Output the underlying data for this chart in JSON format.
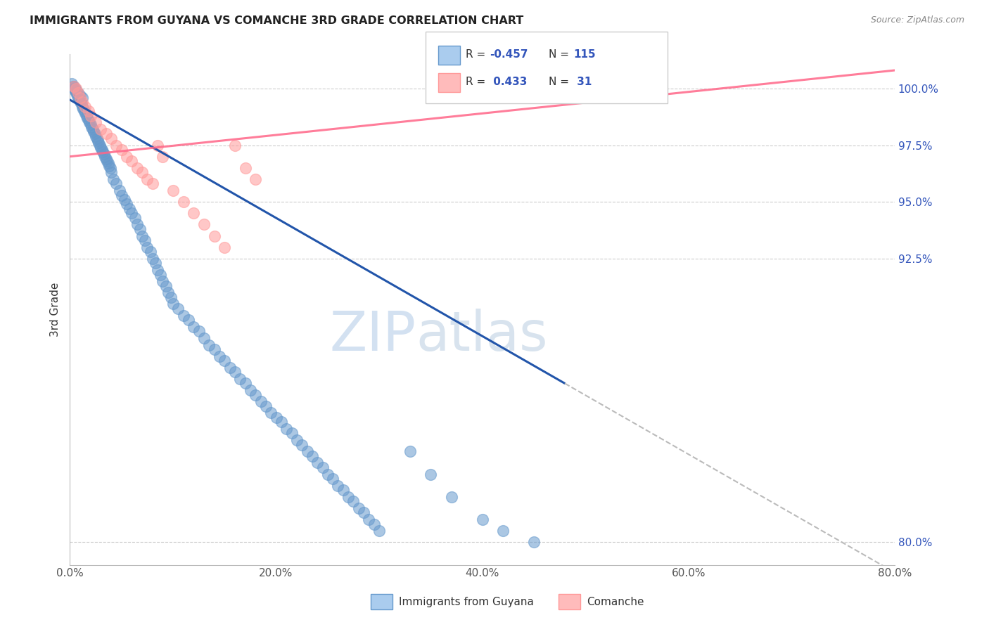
{
  "title": "IMMIGRANTS FROM GUYANA VS COMANCHE 3RD GRADE CORRELATION CHART",
  "source_text": "Source: ZipAtlas.com",
  "ylabel": "3rd Grade",
  "xmin": 0.0,
  "xmax": 80.0,
  "ymin": 79.0,
  "ymax": 101.5,
  "yticks": [
    80.0,
    92.5,
    95.0,
    97.5,
    100.0
  ],
  "ytick_labels": [
    "80.0%",
    "92.5%",
    "95.0%",
    "97.5%",
    "100.0%"
  ],
  "xticks": [
    0.0,
    20.0,
    40.0,
    60.0,
    80.0
  ],
  "xtick_labels": [
    "0.0%",
    "20.0%",
    "40.0%",
    "60.0%",
    "80.0%"
  ],
  "legend_r1": "-0.457",
  "legend_n1": "115",
  "legend_r2": "0.433",
  "legend_n2": "31",
  "blue_color": "#6699CC",
  "pink_color": "#FF9999",
  "blue_line_color": "#2255AA",
  "pink_line_color": "#FF6688",
  "watermark_zip": "ZIP",
  "watermark_atlas": "atlas",
  "blue_scatter_x": [
    0.3,
    0.4,
    0.5,
    0.6,
    0.7,
    0.8,
    0.9,
    1.0,
    1.1,
    1.2,
    1.3,
    1.4,
    1.5,
    1.6,
    1.7,
    1.8,
    1.9,
    2.0,
    2.1,
    2.2,
    2.3,
    2.4,
    2.5,
    2.6,
    2.7,
    2.8,
    2.9,
    3.0,
    3.1,
    3.2,
    3.3,
    3.4,
    3.5,
    3.6,
    3.7,
    3.8,
    3.9,
    4.0,
    4.2,
    4.5,
    4.8,
    5.0,
    5.3,
    5.5,
    5.8,
    6.0,
    6.3,
    6.5,
    6.8,
    7.0,
    7.3,
    7.5,
    7.8,
    8.0,
    8.3,
    8.5,
    8.8,
    9.0,
    9.3,
    9.5,
    9.8,
    10.0,
    10.5,
    11.0,
    11.5,
    12.0,
    12.5,
    13.0,
    13.5,
    14.0,
    14.5,
    15.0,
    15.5,
    16.0,
    16.5,
    17.0,
    17.5,
    18.0,
    18.5,
    19.0,
    19.5,
    20.0,
    20.5,
    21.0,
    21.5,
    22.0,
    22.5,
    23.0,
    23.5,
    24.0,
    24.5,
    25.0,
    25.5,
    26.0,
    26.5,
    27.0,
    27.5,
    28.0,
    28.5,
    29.0,
    29.5,
    30.0,
    33.0,
    35.0,
    37.0,
    40.0,
    42.0,
    45.0,
    0.2,
    0.4,
    0.5,
    0.6,
    0.8,
    1.0,
    1.2
  ],
  "blue_scatter_y": [
    100.1,
    100.0,
    99.9,
    99.8,
    99.7,
    99.6,
    99.5,
    99.4,
    99.3,
    99.2,
    99.1,
    99.0,
    98.9,
    98.8,
    98.7,
    98.6,
    98.5,
    98.4,
    98.3,
    98.2,
    98.1,
    98.0,
    97.9,
    97.8,
    97.7,
    97.6,
    97.5,
    97.4,
    97.3,
    97.2,
    97.1,
    97.0,
    96.9,
    96.8,
    96.7,
    96.6,
    96.5,
    96.3,
    96.0,
    95.8,
    95.5,
    95.3,
    95.1,
    94.9,
    94.7,
    94.5,
    94.3,
    94.0,
    93.8,
    93.5,
    93.3,
    93.0,
    92.8,
    92.5,
    92.3,
    92.0,
    91.8,
    91.5,
    91.3,
    91.0,
    90.8,
    90.5,
    90.3,
    90.0,
    89.8,
    89.5,
    89.3,
    89.0,
    88.7,
    88.5,
    88.2,
    88.0,
    87.7,
    87.5,
    87.2,
    87.0,
    86.7,
    86.5,
    86.2,
    86.0,
    85.7,
    85.5,
    85.3,
    85.0,
    84.8,
    84.5,
    84.3,
    84.0,
    83.8,
    83.5,
    83.3,
    83.0,
    82.8,
    82.5,
    82.3,
    82.0,
    81.8,
    81.5,
    81.3,
    81.0,
    80.8,
    80.5,
    84.0,
    83.0,
    82.0,
    81.0,
    80.5,
    80.0,
    100.2,
    100.1,
    100.0,
    99.9,
    99.8,
    99.7,
    99.6
  ],
  "pink_scatter_x": [
    0.4,
    0.6,
    0.8,
    1.0,
    1.2,
    1.5,
    1.8,
    2.0,
    2.5,
    3.0,
    3.5,
    4.0,
    4.5,
    5.0,
    5.5,
    6.0,
    6.5,
    7.0,
    7.5,
    8.0,
    8.5,
    9.0,
    10.0,
    11.0,
    12.0,
    13.0,
    14.0,
    15.0,
    16.0,
    17.0,
    18.0
  ],
  "pink_scatter_y": [
    100.1,
    100.0,
    99.8,
    99.6,
    99.4,
    99.2,
    99.0,
    98.8,
    98.5,
    98.2,
    98.0,
    97.8,
    97.5,
    97.3,
    97.0,
    96.8,
    96.5,
    96.3,
    96.0,
    95.8,
    97.5,
    97.0,
    95.5,
    95.0,
    94.5,
    94.0,
    93.5,
    93.0,
    97.5,
    96.5,
    96.0
  ]
}
